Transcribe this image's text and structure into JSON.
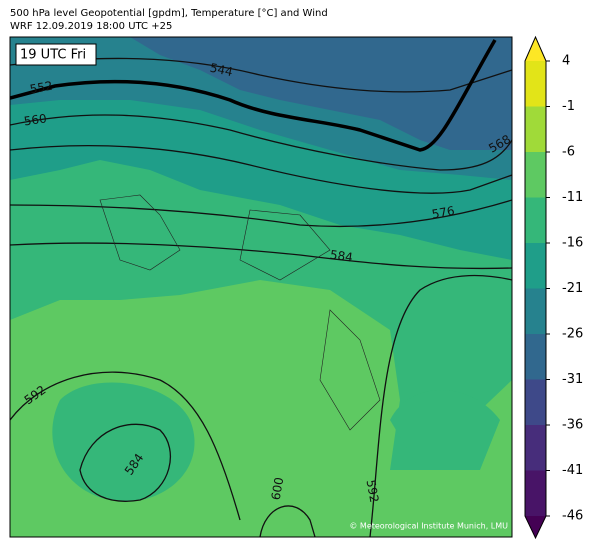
{
  "header": {
    "line1": "500 hPa level Geopotential [gpdm], Temperature [°C] and Wind",
    "line2": "WRF 12.09.2019 18:00 UTC +25"
  },
  "time_label": "19 UTC Fri",
  "contour_labels": [
    "544",
    "552",
    "560",
    "568",
    "576",
    "584",
    "592",
    "584",
    "600",
    "592"
  ],
  "colorbar": {
    "ticks": [
      4,
      -1,
      -6,
      -11,
      -16,
      -21,
      -26,
      -31,
      -36,
      -41,
      -46
    ],
    "colors": [
      "#e2e418",
      "#a0da39",
      "#5ec962",
      "#35b779",
      "#1f9e89",
      "#26828e",
      "#31688e",
      "#3e4989",
      "#472d7b",
      "#481467"
    ],
    "extend_colors": [
      "#fde725",
      "#440154"
    ]
  },
  "credit": "© Meteorological Institute Munich, LMU"
}
